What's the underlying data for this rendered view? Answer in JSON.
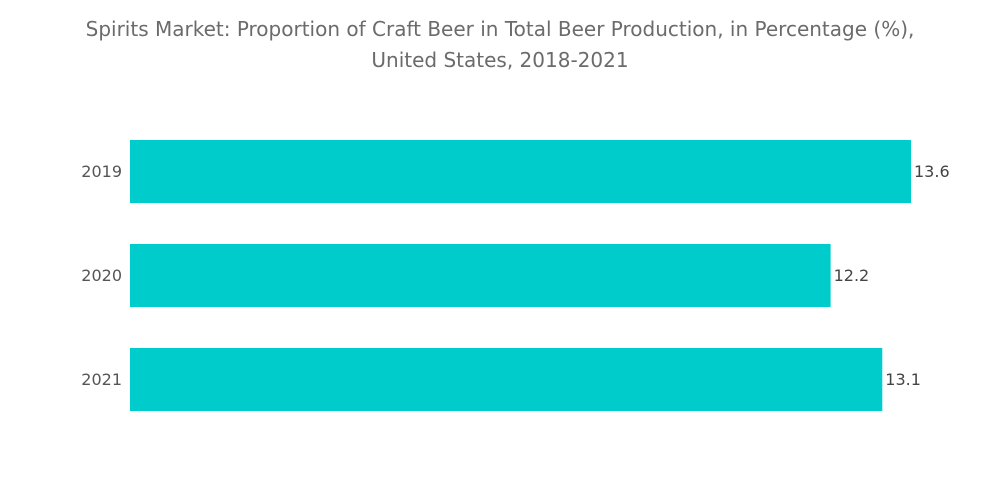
{
  "chart_data": {
    "type": "bar",
    "orientation": "horizontal",
    "title": "Spirits Market: Proportion of Craft Beer in Total Beer Production, in Percentage (%),",
    "subtitle": "United States, 2018-2021",
    "categories": [
      "2019",
      "2020",
      "2021"
    ],
    "values": [
      13.6,
      12.2,
      13.1
    ],
    "value_labels": [
      "13.6",
      "12.2",
      "13.1"
    ],
    "xlabel": "",
    "ylabel": "",
    "xlim": [
      0,
      13.6
    ],
    "grid": false,
    "legend": "none",
    "bar_color": "#00cccc"
  }
}
